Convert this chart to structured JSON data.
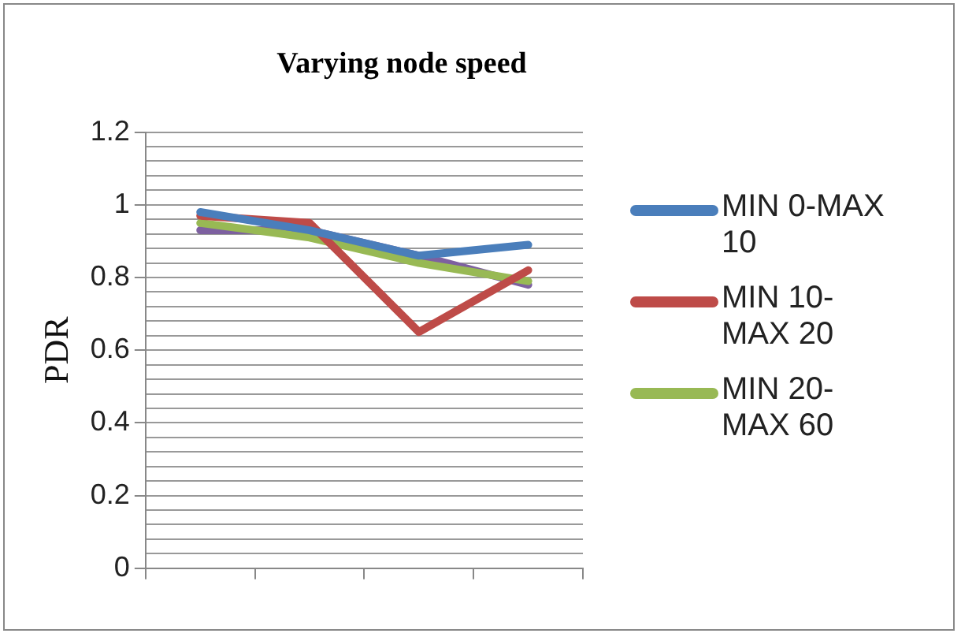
{
  "chart_data": {
    "type": "line",
    "title": "Varying node speed",
    "ylabel": "PDR",
    "categories": [
      null,
      null,
      null,
      null
    ],
    "series": [
      {
        "name": "MIN 0-MAX 10",
        "color": "#4a7ebb",
        "values": [
          0.98,
          0.93,
          0.86,
          0.89
        ]
      },
      {
        "name": "MIN 10-MAX 20",
        "color": "#be4b48",
        "values": [
          0.97,
          0.95,
          0.65,
          0.82
        ]
      },
      {
        "name": "MIN 20-MAX 60",
        "color": "#98b954",
        "values": [
          0.95,
          0.91,
          0.84,
          0.79
        ]
      },
      {
        "color": "#7d60a0",
        "values": [
          0.93,
          0.93,
          0.86,
          0.78
        ]
      }
    ],
    "ylim": [
      0,
      1.2
    ],
    "yticks": [
      0,
      {
        "value": 0.04,
        "label": null
      },
      {
        "value": 0.08,
        "label": null
      },
      {
        "value": 0.12,
        "label": null
      },
      {
        "value": 0.16,
        "label": null
      },
      0.2,
      {
        "value": 0.24,
        "label": null
      },
      {
        "value": 0.28,
        "label": null
      },
      {
        "value": 0.32,
        "label": null
      },
      {
        "value": 0.36,
        "label": null
      },
      0.4,
      {
        "value": 0.44,
        "label": null
      },
      {
        "value": 0.48,
        "label": null
      },
      {
        "value": 0.52,
        "label": null
      },
      {
        "value": 0.56,
        "label": null
      },
      0.6,
      {
        "value": 0.64,
        "label": null
      },
      {
        "value": 0.68,
        "label": null
      },
      {
        "value": 0.72,
        "label": null
      },
      {
        "value": 0.76,
        "label": null
      },
      0.8,
      {
        "value": 0.84,
        "label": null
      },
      {
        "value": 0.88,
        "label": null
      },
      {
        "value": 0.92,
        "label": null
      },
      {
        "value": 0.96,
        "label": null
      },
      1,
      {
        "value": 1.04,
        "label": null
      },
      {
        "value": 1.08,
        "label": null
      },
      {
        "value": 1.12,
        "label": null
      },
      {
        "value": 1.16,
        "label": null
      },
      1.2
    ],
    "grid": "y",
    "legend": "right",
    "marker": "none",
    "line_style": "solid"
  }
}
